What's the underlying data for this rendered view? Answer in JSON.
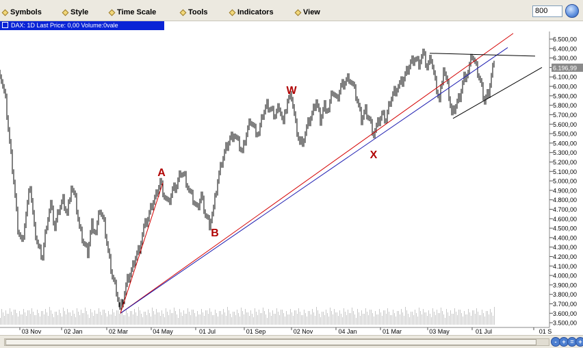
{
  "menu": [
    {
      "label": "Symbols"
    },
    {
      "label": "Style"
    },
    {
      "label": "Time Scale"
    },
    {
      "label": "Tools"
    },
    {
      "label": "Indicators"
    },
    {
      "label": "View"
    }
  ],
  "zoom_value": "800",
  "chart_title": "DAX: 1D Last Price: 0,00 Volume:0vale",
  "last_price_label": "6.196,99",
  "scroll_buttons": [
    "-",
    "+",
    "=",
    "+"
  ],
  "chart_data": {
    "type": "line",
    "title": "DAX: 1D Last Price: 0,00 Volume:0vale",
    "x_tick_labels": [
      "03 Nov",
      "02 Jan",
      "02 Mar",
      "04 May",
      "01 Jul",
      "01 Sep",
      "02 Nov",
      "04 Jan",
      "01 Mar",
      "03 May",
      "01 Jul",
      "01 S"
    ],
    "y_tick_labels": [
      "3.500,00",
      "3.600,00",
      "3.700,00",
      "3.800,00",
      "3.900,00",
      "4.000,00",
      "4.100,00",
      "4.200,00",
      "4.300,00",
      "4.400,00",
      "4.500,00",
      "4.600,00",
      "4.700,00",
      "4.800,00",
      "4.900,00",
      "5.000,00",
      "5.100,00",
      "5.200,00",
      "5.300,00",
      "5.400,00",
      "5.500,00",
      "5.600,00",
      "5.700,00",
      "5.800,00",
      "5.900,00",
      "6.000,00",
      "6.100,00",
      "6.200,00",
      "6.300,00",
      "6.400,00",
      "6.500,00"
    ],
    "ylim": [
      3450,
      6580
    ],
    "x": [
      "03 Nov",
      "02 Jan",
      "02 Mar",
      "04 May",
      "01 Jul",
      "01 Sep",
      "02 Nov",
      "04 Jan",
      "01 Mar",
      "03 May",
      "01 Jul"
    ],
    "series": [
      {
        "values": [
          4400,
          4900,
          3600,
          5000,
          4550,
          5850,
          5400,
          6050,
          5500,
          6330,
          6150
        ]
      }
    ],
    "price_path": [
      [
        0,
        6150
      ],
      [
        8,
        5850
      ],
      [
        14,
        5400
      ],
      [
        20,
        5000
      ],
      [
        26,
        4500
      ],
      [
        32,
        4350
      ],
      [
        38,
        4650
      ],
      [
        44,
        4950
      ],
      [
        50,
        4500
      ],
      [
        56,
        4300
      ],
      [
        62,
        4200
      ],
      [
        68,
        4550
      ],
      [
        74,
        4750
      ],
      [
        80,
        4500
      ],
      [
        86,
        4700
      ],
      [
        92,
        4800
      ],
      [
        98,
        4650
      ],
      [
        104,
        4950
      ],
      [
        110,
        4800
      ],
      [
        116,
        4500
      ],
      [
        122,
        4350
      ],
      [
        128,
        4250
      ],
      [
        134,
        4550
      ],
      [
        140,
        4450
      ],
      [
        146,
        4700
      ],
      [
        152,
        4550
      ],
      [
        158,
        4250
      ],
      [
        164,
        4000
      ],
      [
        170,
        3850
      ],
      [
        175,
        3650
      ],
      [
        180,
        3750
      ],
      [
        186,
        3950
      ],
      [
        192,
        4050
      ],
      [
        198,
        4200
      ],
      [
        204,
        4300
      ],
      [
        210,
        4500
      ],
      [
        216,
        4600
      ],
      [
        222,
        4750
      ],
      [
        228,
        4850
      ],
      [
        234,
        5000
      ],
      [
        240,
        4850
      ],
      [
        246,
        4750
      ],
      [
        252,
        4900
      ],
      [
        258,
        4950
      ],
      [
        264,
        5100
      ],
      [
        270,
        5050
      ],
      [
        276,
        4900
      ],
      [
        282,
        4800
      ],
      [
        288,
        4700
      ],
      [
        294,
        4850
      ],
      [
        300,
        4650
      ],
      [
        306,
        4550
      ],
      [
        312,
        4700
      ],
      [
        318,
        5000
      ],
      [
        324,
        5200
      ],
      [
        330,
        5350
      ],
      [
        336,
        5450
      ],
      [
        342,
        5500
      ],
      [
        348,
        5400
      ],
      [
        354,
        5300
      ],
      [
        360,
        5500
      ],
      [
        366,
        5650
      ],
      [
        372,
        5550
      ],
      [
        378,
        5500
      ],
      [
        384,
        5700
      ],
      [
        390,
        5800
      ],
      [
        396,
        5750
      ],
      [
        402,
        5700
      ],
      [
        408,
        5800
      ],
      [
        414,
        5600
      ],
      [
        420,
        5850
      ],
      [
        426,
        5900
      ],
      [
        432,
        5600
      ],
      [
        438,
        5400
      ],
      [
        444,
        5450
      ],
      [
        450,
        5600
      ],
      [
        456,
        5700
      ],
      [
        462,
        5850
      ],
      [
        468,
        5650
      ],
      [
        474,
        5800
      ],
      [
        480,
        5750
      ],
      [
        486,
        5950
      ],
      [
        492,
        5850
      ],
      [
        498,
        6000
      ],
      [
        504,
        6050
      ],
      [
        510,
        6100
      ],
      [
        516,
        6000
      ],
      [
        522,
        5850
      ],
      [
        528,
        5650
      ],
      [
        534,
        5750
      ],
      [
        540,
        5650
      ],
      [
        546,
        5500
      ],
      [
        552,
        5600
      ],
      [
        558,
        5700
      ],
      [
        564,
        5650
      ],
      [
        570,
        5850
      ],
      [
        576,
        5950
      ],
      [
        582,
        6000
      ],
      [
        588,
        6050
      ],
      [
        594,
        6150
      ],
      [
        600,
        6250
      ],
      [
        606,
        6300
      ],
      [
        612,
        6250
      ],
      [
        618,
        6350
      ],
      [
        624,
        6200
      ],
      [
        630,
        6300
      ],
      [
        636,
        6050
      ],
      [
        642,
        5850
      ],
      [
        648,
        6200
      ],
      [
        654,
        6000
      ],
      [
        660,
        5700
      ],
      [
        666,
        5800
      ],
      [
        672,
        5900
      ],
      [
        678,
        6100
      ],
      [
        684,
        6150
      ],
      [
        690,
        6330
      ],
      [
        696,
        6200
      ],
      [
        702,
        6050
      ],
      [
        708,
        5850
      ],
      [
        714,
        5950
      ],
      [
        720,
        6200
      ],
      [
        724,
        6197
      ]
    ]
  },
  "wave_labels": [
    "A",
    "B",
    "W",
    "X"
  ]
}
